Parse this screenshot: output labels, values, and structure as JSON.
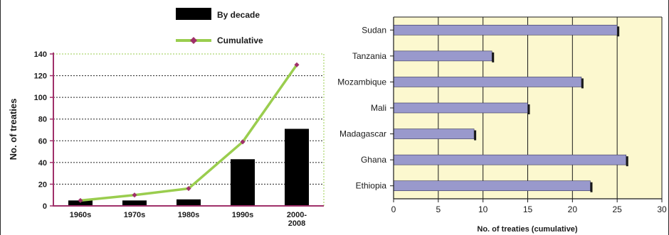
{
  "chart_data": [
    {
      "type": "bar",
      "ylabel": "No. of treaties",
      "xlabel": "",
      "categories": [
        "1960s",
        "1970s",
        "1980s",
        "1990s",
        "2000-2008"
      ],
      "category_lines": [
        [
          "1960s"
        ],
        [
          "1970s"
        ],
        [
          "1980s"
        ],
        [
          "1990s"
        ],
        [
          "2000-",
          "2008"
        ]
      ],
      "ylim": [
        0,
        140
      ],
      "yticks": [
        0,
        20,
        40,
        60,
        80,
        100,
        120,
        140
      ],
      "grid": true,
      "legend_position": "top",
      "series": [
        {
          "name": "By decade",
          "type": "bar",
          "color": "#000000",
          "values": [
            5,
            5,
            6,
            43,
            71
          ]
        },
        {
          "name": "Cumulative",
          "type": "line",
          "color": "#9ACD4E",
          "marker_color": "#a0306a",
          "values": [
            5,
            10,
            16,
            59,
            130
          ]
        }
      ]
    },
    {
      "type": "bar",
      "orientation": "horizontal",
      "xlabel": "No. of treaties (cumulative)",
      "ylabel": "",
      "categories": [
        "Sudan",
        "Tanzania",
        "Mozambique",
        "Mali",
        "Madagascar",
        "Ghana",
        "Ethiopia"
      ],
      "values": [
        25,
        11,
        21,
        15,
        9,
        26,
        22
      ],
      "xlim": [
        0,
        30
      ],
      "xticks": [
        0,
        5,
        10,
        15,
        20,
        25,
        30
      ],
      "grid": true,
      "bar_color": "#9999cc",
      "plot_background": "#fcf8cf"
    }
  ]
}
